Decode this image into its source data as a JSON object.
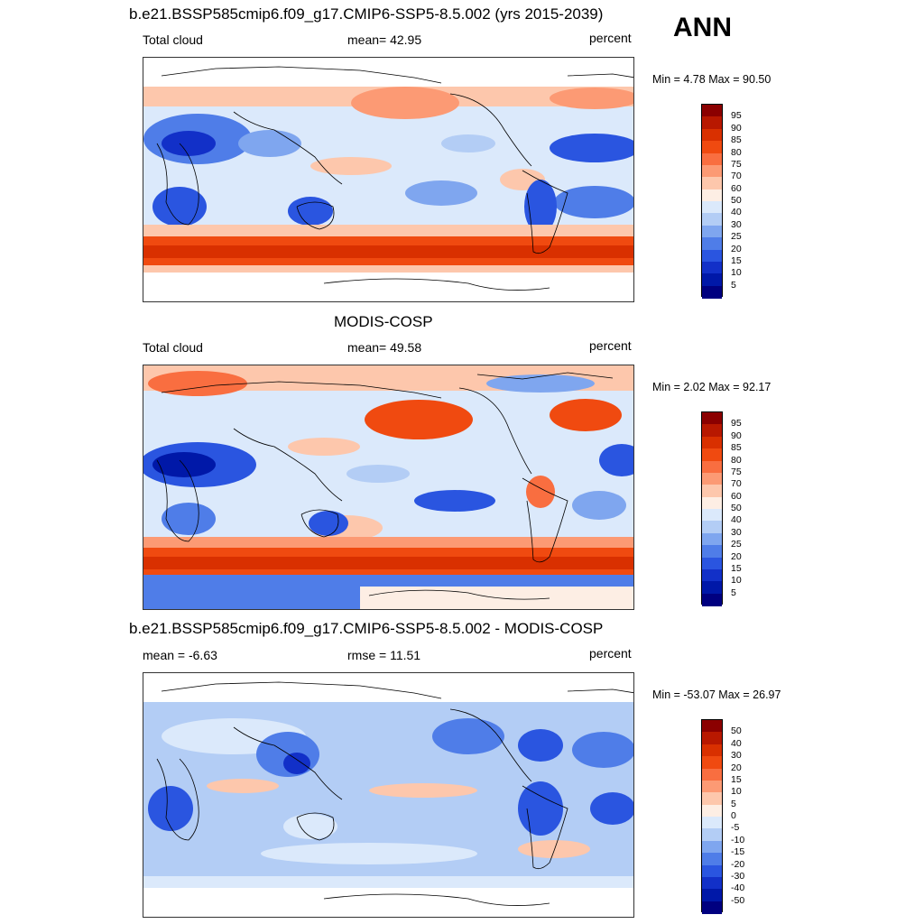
{
  "season": "ANN",
  "panels": [
    {
      "title": "b.e21.BSSP585cmip6.f09_g17.CMIP6-SSP5-8.5.002 (yrs 2015-2039)",
      "left_label": "Total cloud",
      "center_label": "mean=  42.95",
      "units": "percent",
      "minmax": "Min =   4.78 Max =  90.50",
      "colorbar_labels": [
        "95",
        "90",
        "85",
        "80",
        "75",
        "70",
        "60",
        "50",
        "40",
        "30",
        "25",
        "20",
        "15",
        "10",
        "5"
      ],
      "colors": [
        "#8b0000",
        "#b81800",
        "#d93000",
        "#f04a10",
        "#f96e40",
        "#fc9a74",
        "#fdc7ac",
        "#fdeee4",
        "#dbe9fb",
        "#b3cdf5",
        "#7fa6ef",
        "#4f7de8",
        "#2a55e0",
        "#1230c8",
        "#0018a8",
        "#000080"
      ]
    },
    {
      "title": "MODIS-COSP",
      "left_label": "Total cloud",
      "center_label": "mean=  49.58",
      "units": "percent",
      "minmax": "Min =   2.02 Max =  92.17",
      "colorbar_labels": [
        "95",
        "90",
        "85",
        "80",
        "75",
        "70",
        "60",
        "50",
        "40",
        "30",
        "25",
        "20",
        "15",
        "10",
        "5"
      ],
      "colors": [
        "#8b0000",
        "#b81800",
        "#d93000",
        "#f04a10",
        "#f96e40",
        "#fc9a74",
        "#fdc7ac",
        "#fdeee4",
        "#dbe9fb",
        "#b3cdf5",
        "#7fa6ef",
        "#4f7de8",
        "#2a55e0",
        "#1230c8",
        "#0018a8",
        "#000080"
      ]
    },
    {
      "title": "b.e21.BSSP585cmip6.f09_g17.CMIP6-SSP5-8.5.002 - MODIS-COSP",
      "left_label": "mean =  -6.63",
      "center_label": "rmse =  11.51",
      "units": "percent",
      "minmax": "Min = -53.07 Max =  26.97",
      "colorbar_labels": [
        "50",
        "40",
        "30",
        "20",
        "15",
        "10",
        "5",
        "0",
        "-5",
        "-10",
        "-15",
        "-20",
        "-30",
        "-40",
        "-50"
      ],
      "colors": [
        "#8b0000",
        "#b81800",
        "#d93000",
        "#f04a10",
        "#f96e40",
        "#fc9a74",
        "#fdc7ac",
        "#fdeee4",
        "#dbe9fb",
        "#b3cdf5",
        "#7fa6ef",
        "#4f7de8",
        "#2a55e0",
        "#1230c8",
        "#0018a8",
        "#000080"
      ]
    }
  ]
}
